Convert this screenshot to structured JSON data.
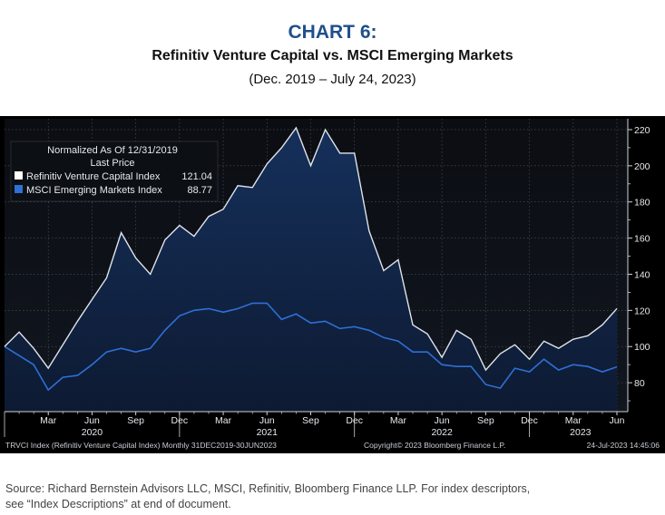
{
  "header": {
    "chart_number": "CHART 6:",
    "title": "Refinitiv Venture Capital vs. MSCI Emerging Markets",
    "date_range": "(Dec. 2019 – July 24, 2023)"
  },
  "legend": {
    "line1": "Normalized As Of 12/31/2019",
    "line2": "Last Price"
  },
  "footer": {
    "left": "TRVCI Index (Refinitiv Venture Capital Index) Monthly 31DEC2019-30JUN2023",
    "center": "Copyright© 2023 Bloomberg Finance L.P.",
    "right": "24-Jul-2023 14:45:06"
  },
  "source": {
    "text": "Source: Richard Bernstein Advisors LLC, MSCI, Refinitiv, Bloomberg Finance LLP.  For index descriptors, see “Index Descriptions” at end of document."
  },
  "chart_data": {
    "type": "line",
    "x_month_labels": [
      "Mar",
      "Jun",
      "Sep",
      "Dec",
      "Mar",
      "Jun",
      "Sep",
      "Dec",
      "Mar",
      "Jun",
      "Sep",
      "Dec",
      "Mar",
      "Jun"
    ],
    "x_year_labels": [
      "2020",
      "2021",
      "2022",
      "2023"
    ],
    "x_start": "2019-12-31",
    "x_end": "2023-06-30",
    "ylim": [
      64,
      226
    ],
    "yticks": [
      80,
      100,
      120,
      140,
      160,
      180,
      200,
      220
    ],
    "series": [
      {
        "name": "Refinitiv Venture Capital Index",
        "last_price": "121.04",
        "color": "#dfe4ea",
        "values": [
          100,
          108,
          99,
          88,
          101,
          114,
          126,
          138,
          163,
          149,
          140,
          159,
          167,
          161,
          172,
          176,
          189,
          188,
          201,
          210,
          221,
          200,
          220,
          207,
          207,
          164,
          142,
          148,
          112,
          107,
          94,
          109,
          104,
          87,
          96,
          101,
          93,
          103,
          99,
          104,
          106,
          112,
          121.04
        ]
      },
      {
        "name": "MSCI Emerging Markets Index",
        "last_price": "88.77",
        "color": "#2f6fd6",
        "values": [
          100,
          95,
          90,
          76,
          83,
          84,
          90,
          97,
          99,
          97,
          99,
          109,
          117,
          120,
          121,
          119,
          121,
          124,
          124,
          115,
          118,
          113,
          114,
          110,
          111,
          109,
          105,
          103,
          97,
          97,
          90,
          89,
          89,
          79,
          77,
          88,
          86,
          93,
          87,
          90,
          89,
          86,
          88.77
        ]
      }
    ]
  }
}
